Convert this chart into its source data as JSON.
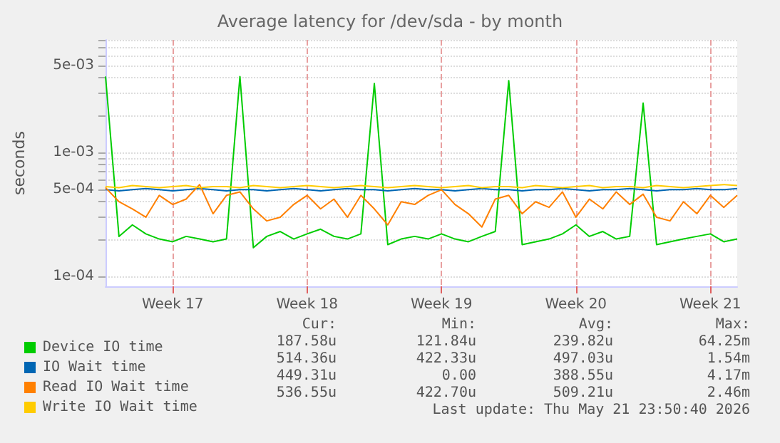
{
  "chart_data": {
    "type": "line",
    "title": "Average latency for /dev/sda - by month",
    "ylabel": "seconds",
    "log": "y",
    "grid": true,
    "legend": "bottom",
    "categories": [
      null,
      null,
      null,
      null,
      null,
      "Week 17",
      null,
      null,
      null,
      null,
      null,
      null,
      null,
      null,
      null,
      "Week 18",
      null,
      null,
      null,
      null,
      null,
      null,
      null,
      null,
      null,
      "Week 19",
      null,
      null,
      null,
      null,
      null,
      null,
      null,
      null,
      null,
      "Week 20",
      null,
      null,
      null,
      null,
      null,
      null,
      null,
      null,
      null,
      "Week 21",
      null,
      null
    ],
    "ylim": [
      8.3e-05,
      0.0081
    ],
    "yticks": [
      {
        "value": 0.0001,
        "label": "1e-04"
      },
      {
        "value": 0.0002,
        "label": null
      },
      {
        "value": 0.0003,
        "label": null
      },
      {
        "value": 0.0004,
        "label": null
      },
      {
        "value": 0.0005,
        "label": "5e-04"
      },
      {
        "value": 0.0006,
        "label": null
      },
      {
        "value": 0.0007,
        "label": null
      },
      {
        "value": 0.0008,
        "label": null
      },
      {
        "value": 0.0009,
        "label": null
      },
      {
        "value": 0.001,
        "label": "1e-03"
      },
      {
        "value": 0.002,
        "label": null
      },
      {
        "value": 0.003,
        "label": null
      },
      {
        "value": 0.004,
        "label": null
      },
      {
        "value": 0.005,
        "label": "5e-03"
      },
      {
        "value": 0.006,
        "label": null
      },
      {
        "value": 0.007,
        "label": null
      },
      {
        "value": 0.008,
        "label": null
      }
    ],
    "series": [
      {
        "name": "Device IO time",
        "color": "#00cc00",
        "values": [
          0.0041,
          0.00021,
          0.00026,
          0.00022,
          0.0002,
          0.00019,
          0.00021,
          0.0002,
          0.00019,
          0.0002,
          0.0041,
          0.00017,
          0.00021,
          0.00023,
          0.0002,
          0.00022,
          0.00024,
          0.00021,
          0.0002,
          0.00022,
          0.0036,
          0.00018,
          0.0002,
          0.00021,
          0.0002,
          0.00022,
          0.0002,
          0.00019,
          0.00021,
          0.00023,
          0.0038,
          0.00018,
          0.00019,
          0.0002,
          0.00022,
          0.00026,
          0.00021,
          0.00023,
          0.0002,
          0.00021,
          0.0025,
          0.00018,
          0.00019,
          0.0002,
          0.00021,
          0.00022,
          0.00019,
          0.0002
        ]
      },
      {
        "name": "IO Wait time",
        "color": "#0066b3",
        "values": [
          0.0005,
          0.00049,
          0.0005,
          0.00051,
          0.0005,
          0.00049,
          0.0005,
          0.00051,
          0.0005,
          0.00049,
          0.0005,
          0.0005,
          0.00049,
          0.0005,
          0.00051,
          0.0005,
          0.00049,
          0.0005,
          0.00051,
          0.0005,
          0.0005,
          0.00049,
          0.0005,
          0.00051,
          0.0005,
          0.0005,
          0.00049,
          0.0005,
          0.00051,
          0.0005,
          0.0005,
          0.00049,
          0.0005,
          0.0005,
          0.00051,
          0.0005,
          0.00049,
          0.0005,
          0.0005,
          0.00051,
          0.0005,
          0.00049,
          0.0005,
          0.0005,
          0.00051,
          0.0005,
          0.0005,
          0.00051
        ]
      },
      {
        "name": "Read IO Wait time",
        "color": "#ff8000",
        "values": [
          0.00052,
          0.0004,
          0.00035,
          0.0003,
          0.00045,
          0.00038,
          0.00042,
          0.00055,
          0.00032,
          0.00045,
          0.00048,
          0.00035,
          0.00028,
          0.0003,
          0.00038,
          0.00045,
          0.00035,
          0.00042,
          0.0003,
          0.00045,
          0.00035,
          0.00026,
          0.0004,
          0.00038,
          0.00045,
          0.0005,
          0.00038,
          0.00032,
          0.00025,
          0.00042,
          0.00045,
          0.00032,
          0.0004,
          0.00036,
          0.00048,
          0.0003,
          0.00042,
          0.00035,
          0.00048,
          0.00038,
          0.00046,
          0.0003,
          0.00028,
          0.0004,
          0.00032,
          0.00045,
          0.00036,
          0.00045
        ]
      },
      {
        "name": "Write IO Wait time",
        "color": "#ffcc00",
        "values": [
          0.00053,
          0.00052,
          0.00054,
          0.00053,
          0.00052,
          0.00053,
          0.00054,
          0.00052,
          0.00053,
          0.00053,
          0.00052,
          0.00054,
          0.00053,
          0.00052,
          0.00053,
          0.00054,
          0.00053,
          0.00052,
          0.00053,
          0.00054,
          0.00053,
          0.00052,
          0.00053,
          0.00054,
          0.00053,
          0.00052,
          0.00053,
          0.00054,
          0.00052,
          0.00053,
          0.00053,
          0.00052,
          0.00054,
          0.00053,
          0.00052,
          0.00053,
          0.00054,
          0.00052,
          0.00053,
          0.00053,
          0.00052,
          0.00054,
          0.00053,
          0.00052,
          0.00053,
          0.00054,
          0.00055,
          0.00054
        ]
      }
    ],
    "annotations": [
      "Cur:",
      "Min:",
      "Avg:",
      "Max:",
      "187.58u",
      "121.84u",
      "239.82u",
      "64.25m",
      "514.36u",
      "422.33u",
      "497.03u",
      "1.54m",
      "449.31u",
      "0.00",
      "388.55u",
      "4.17m",
      "536.55u",
      "422.70u",
      "509.21u",
      "2.46m",
      "Last update: Thu May 21 23:50:40 2026"
    ]
  }
}
